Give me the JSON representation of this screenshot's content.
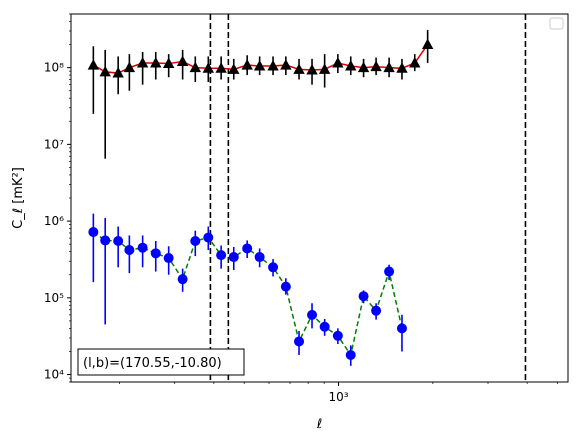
{
  "chart_data": {
    "type": "scatter",
    "title": "",
    "xlabel": "ℓ",
    "ylabel": "C_ℓ  [mK²]",
    "x_scale": "log",
    "y_scale": "log",
    "xlim": [
      140,
      5400
    ],
    "ylim": [
      8000,
      500000000
    ],
    "x_ticks": [
      {
        "value": 1000,
        "label": "10³"
      }
    ],
    "y_ticks": [
      {
        "value": 10000,
        "label": "10⁴"
      },
      {
        "value": 100000,
        "label": "10⁵"
      },
      {
        "value": 1000000,
        "label": "10⁶"
      },
      {
        "value": 10000000,
        "label": "10⁷"
      },
      {
        "value": 100000000,
        "label": "10⁸"
      }
    ],
    "grid": false,
    "legend": {
      "placement": "top-right",
      "entries": []
    },
    "vlines": [
      390,
      445,
      3950
    ],
    "annotation": "(l,b)=(170.55,-10.80)",
    "series": [
      {
        "marker": "triangle",
        "marker_color": "#000000",
        "errorbar_color": "#000000",
        "line_color": "#e00000",
        "line_style": "solid",
        "points": [
          {
            "x": 165,
            "y": 108000000,
            "lo": 25000000,
            "hi": 190000000
          },
          {
            "x": 180,
            "y": 88000000,
            "lo": 6500000,
            "hi": 170000000
          },
          {
            "x": 198,
            "y": 85000000,
            "lo": 45000000,
            "hi": 140000000
          },
          {
            "x": 215,
            "y": 100000000,
            "lo": 50000000,
            "hi": 150000000
          },
          {
            "x": 237,
            "y": 115000000,
            "lo": 60000000,
            "hi": 160000000
          },
          {
            "x": 261,
            "y": 115000000,
            "lo": 70000000,
            "hi": 160000000
          },
          {
            "x": 287,
            "y": 113000000,
            "lo": 75000000,
            "hi": 150000000
          },
          {
            "x": 318,
            "y": 120000000,
            "lo": 70000000,
            "hi": 170000000
          },
          {
            "x": 349,
            "y": 100000000,
            "lo": 65000000,
            "hi": 140000000
          },
          {
            "x": 384,
            "y": 98000000,
            "lo": 65000000,
            "hi": 140000000
          },
          {
            "x": 422,
            "y": 98000000,
            "lo": 70000000,
            "hi": 140000000
          },
          {
            "x": 463,
            "y": 95000000,
            "lo": 70000000,
            "hi": 130000000
          },
          {
            "x": 511,
            "y": 108000000,
            "lo": 80000000,
            "hi": 145000000
          },
          {
            "x": 560,
            "y": 105000000,
            "lo": 80000000,
            "hi": 140000000
          },
          {
            "x": 618,
            "y": 105000000,
            "lo": 80000000,
            "hi": 140000000
          },
          {
            "x": 679,
            "y": 108000000,
            "lo": 80000000,
            "hi": 140000000
          },
          {
            "x": 748,
            "y": 95000000,
            "lo": 70000000,
            "hi": 130000000
          },
          {
            "x": 823,
            "y": 93000000,
            "lo": 60000000,
            "hi": 130000000
          },
          {
            "x": 903,
            "y": 95000000,
            "lo": 55000000,
            "hi": 150000000
          },
          {
            "x": 995,
            "y": 115000000,
            "lo": 85000000,
            "hi": 150000000
          },
          {
            "x": 1094,
            "y": 105000000,
            "lo": 80000000,
            "hi": 140000000
          },
          {
            "x": 1202,
            "y": 100000000,
            "lo": 75000000,
            "hi": 130000000
          },
          {
            "x": 1318,
            "y": 103000000,
            "lo": 80000000,
            "hi": 135000000
          },
          {
            "x": 1450,
            "y": 100000000,
            "lo": 75000000,
            "hi": 135000000
          },
          {
            "x": 1594,
            "y": 98000000,
            "lo": 70000000,
            "hi": 130000000
          },
          {
            "x": 1751,
            "y": 115000000,
            "lo": 90000000,
            "hi": 150000000
          },
          {
            "x": 1925,
            "y": 200000000,
            "lo": 115000000,
            "hi": 310000000
          }
        ]
      },
      {
        "marker": "circle",
        "marker_color": "#0000ff",
        "errorbar_color": "#0000ff",
        "line_color": "#008000",
        "line_style": "dashed",
        "points": [
          {
            "x": 165,
            "y": 720000,
            "lo": 160000,
            "hi": 1250000
          },
          {
            "x": 180,
            "y": 560000,
            "lo": 45000,
            "hi": 1100000
          },
          {
            "x": 198,
            "y": 550000,
            "lo": 250000,
            "hi": 850000
          },
          {
            "x": 215,
            "y": 420000,
            "lo": 210000,
            "hi": 650000
          },
          {
            "x": 237,
            "y": 450000,
            "lo": 250000,
            "hi": 650000
          },
          {
            "x": 261,
            "y": 380000,
            "lo": 220000,
            "hi": 550000
          },
          {
            "x": 287,
            "y": 330000,
            "lo": 200000,
            "hi": 470000
          },
          {
            "x": 318,
            "y": 175000,
            "lo": 120000,
            "hi": 240000
          },
          {
            "x": 349,
            "y": 550000,
            "lo": 350000,
            "hi": 750000
          },
          {
            "x": 384,
            "y": 610000,
            "lo": 420000,
            "hi": 850000
          },
          {
            "x": 422,
            "y": 360000,
            "lo": 240000,
            "hi": 480000
          },
          {
            "x": 463,
            "y": 340000,
            "lo": 230000,
            "hi": 460000
          },
          {
            "x": 511,
            "y": 440000,
            "lo": 330000,
            "hi": 560000
          },
          {
            "x": 560,
            "y": 340000,
            "lo": 250000,
            "hi": 440000
          },
          {
            "x": 618,
            "y": 250000,
            "lo": 190000,
            "hi": 320000
          },
          {
            "x": 679,
            "y": 140000,
            "lo": 110000,
            "hi": 180000
          },
          {
            "x": 748,
            "y": 27000,
            "lo": 18000,
            "hi": 37000
          },
          {
            "x": 823,
            "y": 60000,
            "lo": 40000,
            "hi": 85000
          },
          {
            "x": 903,
            "y": 42000,
            "lo": 32000,
            "hi": 53000
          },
          {
            "x": 995,
            "y": 32000,
            "lo": 25000,
            "hi": 40000
          },
          {
            "x": 1094,
            "y": 18000,
            "lo": 13000,
            "hi": 24000
          },
          {
            "x": 1202,
            "y": 105000,
            "lo": 85000,
            "hi": 125000
          },
          {
            "x": 1318,
            "y": 68000,
            "lo": 52000,
            "hi": 85000
          },
          {
            "x": 1450,
            "y": 220000,
            "lo": 170000,
            "hi": 270000
          },
          {
            "x": 1594,
            "y": 40000,
            "lo": 20000,
            "hi": 60000
          }
        ]
      }
    ]
  }
}
